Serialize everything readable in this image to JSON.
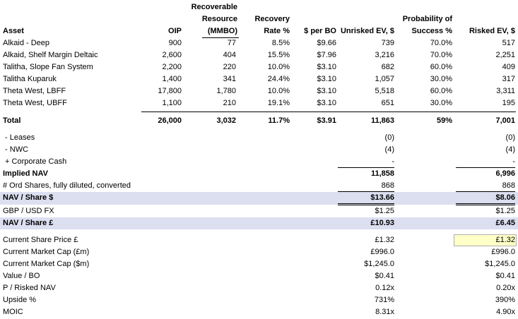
{
  "header": {
    "asset": "Asset",
    "oip": "OIP",
    "resource": [
      "Recoverable",
      "Resource",
      "(MMBO)"
    ],
    "recovery": [
      "Recovery",
      "Rate %"
    ],
    "per_bo": "$ per BO",
    "unrisked": "Unrisked EV, $",
    "pos": [
      "Probability of",
      "Success %"
    ],
    "risked": "Risked EV, $"
  },
  "assets": [
    {
      "name": "Alkaid - Deep",
      "oip": "900",
      "res": "77",
      "rate": "8.5%",
      "perbo": "$9.66",
      "unrisked": "739",
      "pos": "70.0%",
      "risked": "517"
    },
    {
      "name": "Alkaid, Shelf Margin Deltaic",
      "oip": "2,600",
      "res": "404",
      "rate": "15.5%",
      "perbo": "$7.96",
      "unrisked": "3,216",
      "pos": "70.0%",
      "risked": "2,251"
    },
    {
      "name": "Talitha, Slope Fan System",
      "oip": "2,200",
      "res": "220",
      "rate": "10.0%",
      "perbo": "$3.10",
      "unrisked": "682",
      "pos": "60.0%",
      "risked": "409"
    },
    {
      "name": "Talitha Kuparuk",
      "oip": "1,400",
      "res": "341",
      "rate": "24.4%",
      "perbo": "$3.10",
      "unrisked": "1,057",
      "pos": "30.0%",
      "risked": "317"
    },
    {
      "name": "Theta West, LBFF",
      "oip": "17,800",
      "res": "1,780",
      "rate": "10.0%",
      "perbo": "$3.10",
      "unrisked": "5,518",
      "pos": "60.0%",
      "risked": "3,311"
    },
    {
      "name": "Theta West, UBFF",
      "oip": "1,100",
      "res": "210",
      "rate": "19.1%",
      "perbo": "$3.10",
      "unrisked": "651",
      "pos": "30.0%",
      "risked": "195"
    }
  ],
  "total": {
    "name": "Total",
    "oip": "26,000",
    "res": "3,032",
    "rate": "11.7%",
    "perbo": "$3.91",
    "unrisked": "11,863",
    "pos": "59%",
    "risked": "7,001"
  },
  "adjust": [
    {
      "name": " - Leases",
      "unrisked": "(0)",
      "risked": "(0)"
    },
    {
      "name": " - NWC",
      "unrisked": "(4)",
      "risked": "(4)"
    },
    {
      "name": " + Corporate Cash",
      "unrisked": "-",
      "risked": "-"
    }
  ],
  "implied_nav": {
    "name": "Implied NAV",
    "unrisked": "11,858",
    "risked": "6,996"
  },
  "shares": {
    "name": "# Ord Shares, fully diluted, converted",
    "unrisked": "868",
    "risked": "868"
  },
  "nav_usd": {
    "name": "NAV / Share $",
    "unrisked": "$13.66",
    "risked": "$8.06"
  },
  "fx": {
    "name": "GBP / USD FX",
    "unrisked": "$1.25",
    "risked": "$1.25"
  },
  "nav_gbp": {
    "name": "NAV / Share £",
    "unrisked": "£10.93",
    "risked": "£6.45"
  },
  "market": [
    {
      "name": "Current Share Price £",
      "unrisked": "£1.32",
      "risked": "£1.32"
    },
    {
      "name": "Current Market Cap (£m)",
      "unrisked": "£996.0",
      "risked": "£996.0"
    },
    {
      "name": "Current Market Cap ($m)",
      "unrisked": "$1,245.0",
      "risked": "$1,245.0"
    },
    {
      "name": "Value / BO",
      "unrisked": "$0.41",
      "risked": "$0.41"
    },
    {
      "name": "P / Risked NAV",
      "unrisked": "0.12x",
      "risked": "0.20x"
    },
    {
      "name": "Upside %",
      "unrisked": "731%",
      "risked": "390%"
    },
    {
      "name": "MOIC",
      "unrisked": "8.31x",
      "risked": "4.90x"
    }
  ],
  "colors": {
    "shade": "#dcdff0",
    "highlight": "#ffffc8"
  }
}
